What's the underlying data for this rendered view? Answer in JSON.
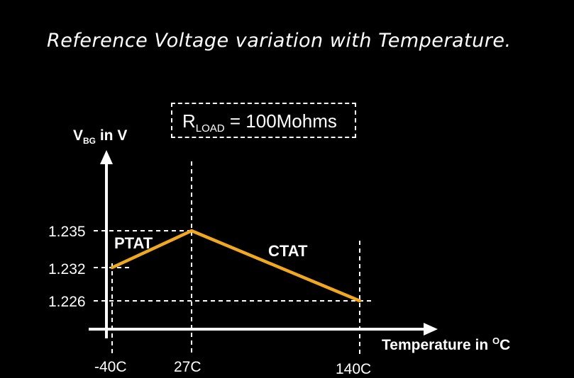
{
  "slide": {
    "title": "Reference Voltage variation with Temperature."
  },
  "annotation": {
    "prefix": "R",
    "subscript": "LOAD",
    "suffix": " = 100Mohms"
  },
  "chart_data": {
    "type": "line",
    "ylabel_main": "V",
    "ylabel_sub": "BG",
    "ylabel_rest": " in V",
    "xlabel_main": "Temperature in ",
    "xlabel_sup": "O",
    "xlabel_rest": "C",
    "x_ticks": [
      "-40C",
      "27C",
      "140C"
    ],
    "y_ticks": [
      "1.235",
      "1.232",
      "1.226"
    ],
    "x": [
      -40,
      27,
      140
    ],
    "y": [
      1.232,
      1.235,
      1.226
    ],
    "segments": [
      {
        "label": "PTAT",
        "x": [
          -40,
          27
        ]
      },
      {
        "label": "CTAT",
        "x": [
          27,
          140
        ]
      }
    ],
    "line_color": "#f0a820",
    "axis_color": "#ffffff",
    "grid": false
  }
}
